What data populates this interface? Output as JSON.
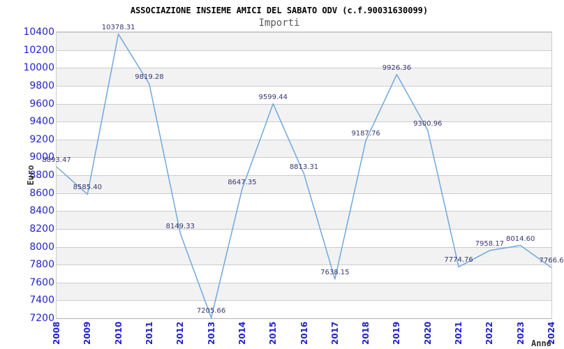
{
  "chart_data": {
    "type": "line",
    "title": "ASSOCIAZIONE INSIEME AMICI DEL SABATO ODV (c.f.90031630099)",
    "subtitle": "Importi",
    "xlabel": "Anno",
    "ylabel": "Euro",
    "x": [
      2008,
      2009,
      2010,
      2011,
      2012,
      2013,
      2014,
      2015,
      2016,
      2017,
      2018,
      2019,
      2020,
      2021,
      2022,
      2023,
      2024
    ],
    "series": [
      {
        "name": "Importi",
        "values": [
          8893.47,
          8585.4,
          10378.31,
          9819.28,
          8149.33,
          7205.66,
          8647.35,
          9599.44,
          8813.31,
          7638.15,
          9187.76,
          9926.36,
          9300.96,
          7774.76,
          7958.17,
          8014.6,
          7766.6
        ]
      }
    ],
    "point_labels": [
      "8893.47",
      "8585.40",
      "10378.31",
      "9819.28",
      "8149.33",
      "7205.66",
      "8647.35",
      "9599.44",
      "8813.31",
      "7638.15",
      "9187.76",
      "9926.36",
      "9300.96",
      "7774.76",
      "7958.17",
      "8014.60",
      "7766.6"
    ],
    "ylim": [
      7200,
      10400
    ],
    "ytick_step": 200,
    "grid": "horizontal-only",
    "legend": "none",
    "plot_bands": "alternating",
    "colors": {
      "line": "#6FA8DC",
      "tick_labels": "#2222CC",
      "point_labels": "#363673",
      "band_fill": "#F2F2F2",
      "grid": "#CCCCCC",
      "axis_titles": "#333333",
      "title": "#000000",
      "subtitle": "#595959"
    }
  }
}
